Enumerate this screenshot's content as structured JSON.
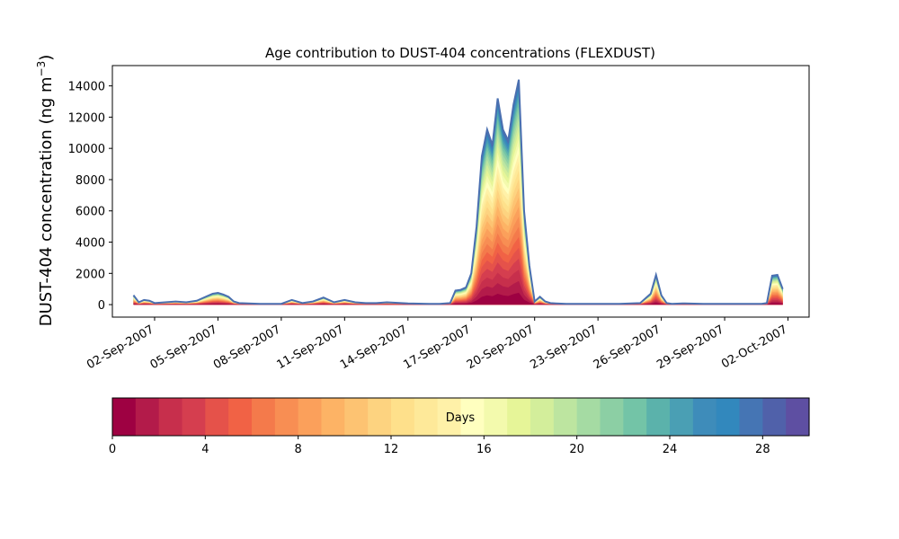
{
  "chart_data": {
    "type": "area",
    "title": "Age contribution to DUST-404 concentrations (FLEXDUST)",
    "xlabel": "",
    "ylabel": "DUST-404 concentration (ng m",
    "ylabel_unit_sup": "−3",
    "ylabel_close": ")",
    "xlim": [
      "2007-08-31",
      "2007-10-03"
    ],
    "ylim": [
      -800,
      15300
    ],
    "x_ticks": [
      "02-Sep-2007",
      "05-Sep-2007",
      "08-Sep-2007",
      "11-Sep-2007",
      "14-Sep-2007",
      "17-Sep-2007",
      "20-Sep-2007",
      "23-Sep-2007",
      "26-Sep-2007",
      "29-Sep-2007",
      "02-Oct-2007"
    ],
    "y_ticks": [
      0,
      2000,
      4000,
      6000,
      8000,
      10000,
      12000,
      14000
    ],
    "total_series": {
      "name": "",
      "x": [
        "2007-09-01 00:00",
        "2007-09-01 06:00",
        "2007-09-01 12:00",
        "2007-09-01 18:00",
        "2007-09-02 00:00",
        "2007-09-02 12:00",
        "2007-09-03 00:00",
        "2007-09-03 12:00",
        "2007-09-04 00:00",
        "2007-09-04 06:00",
        "2007-09-04 12:00",
        "2007-09-04 18:00",
        "2007-09-05 00:00",
        "2007-09-05 06:00",
        "2007-09-05 12:00",
        "2007-09-05 18:00",
        "2007-09-06 00:00",
        "2007-09-07 00:00",
        "2007-09-08 00:00",
        "2007-09-08 12:00",
        "2007-09-09 00:00",
        "2007-09-09 12:00",
        "2007-09-10 00:00",
        "2007-09-10 12:00",
        "2007-09-11 00:00",
        "2007-09-11 12:00",
        "2007-09-12 00:00",
        "2007-09-12 12:00",
        "2007-09-13 00:00",
        "2007-09-14 00:00",
        "2007-09-15 00:00",
        "2007-09-15 12:00",
        "2007-09-16 00:00",
        "2007-09-16 06:00",
        "2007-09-16 12:00",
        "2007-09-16 18:00",
        "2007-09-17 00:00",
        "2007-09-17 06:00",
        "2007-09-17 12:00",
        "2007-09-17 18:00",
        "2007-09-18 00:00",
        "2007-09-18 06:00",
        "2007-09-18 12:00",
        "2007-09-18 18:00",
        "2007-09-19 00:00",
        "2007-09-19 06:00",
        "2007-09-19 12:00",
        "2007-09-19 18:00",
        "2007-09-20 00:00",
        "2007-09-20 06:00",
        "2007-09-20 12:00",
        "2007-09-20 18:00",
        "2007-09-21 00:00",
        "2007-09-21 12:00",
        "2007-09-22 00:00",
        "2007-09-23 00:00",
        "2007-09-24 00:00",
        "2007-09-25 00:00",
        "2007-09-25 12:00",
        "2007-09-25 18:00",
        "2007-09-26 00:00",
        "2007-09-26 06:00",
        "2007-09-26 12:00",
        "2007-09-27 00:00",
        "2007-09-28 00:00",
        "2007-09-29 00:00",
        "2007-09-30 00:00",
        "2007-09-30 12:00",
        "2007-09-30 18:00",
        "2007-10-01 00:00",
        "2007-10-01 06:00",
        "2007-10-01 12:00",
        "2007-10-01 18:00"
      ],
      "values": [
        600,
        150,
        300,
        250,
        100,
        150,
        200,
        150,
        250,
        400,
        550,
        700,
        750,
        650,
        500,
        200,
        100,
        50,
        50,
        300,
        100,
        200,
        450,
        150,
        300,
        150,
        100,
        100,
        150,
        80,
        50,
        50,
        100,
        900,
        950,
        1100,
        2000,
        5000,
        9500,
        11200,
        10200,
        13200,
        11200,
        10500,
        12800,
        14400,
        6000,
        2500,
        200,
        500,
        200,
        100,
        80,
        50,
        50,
        50,
        50,
        100,
        700,
        1900,
        600,
        100,
        50,
        80,
        50,
        50,
        50,
        50,
        50,
        100,
        1850,
        1900,
        1000
      ]
    },
    "peak_fraction_by_age_band_note": "",
    "colorbar": {
      "label": "Days",
      "range": [
        0,
        30
      ],
      "bands": 30,
      "ticks": [
        0,
        4,
        8,
        12,
        16,
        20,
        24,
        28
      ],
      "colors": [
        "#9e0142",
        "#b31b4a",
        "#c72f4c",
        "#d53e4f",
        "#e5524a",
        "#f16245",
        "#f47a4b",
        "#f88e53",
        "#fba05b",
        "#fdb365",
        "#fdc372",
        "#fdd380",
        "#fee08b",
        "#fee999",
        "#fff1a8",
        "#ffffbf",
        "#f3faad",
        "#e6f598",
        "#d3ee9b",
        "#bde5a0",
        "#a5dba3",
        "#8ccfa4",
        "#73c4a7",
        "#5bb2ab",
        "#4a9fb4",
        "#3e8cba",
        "#3288bd",
        "#4575b4",
        "#5061aa",
        "#5e4fa2"
      ]
    }
  }
}
